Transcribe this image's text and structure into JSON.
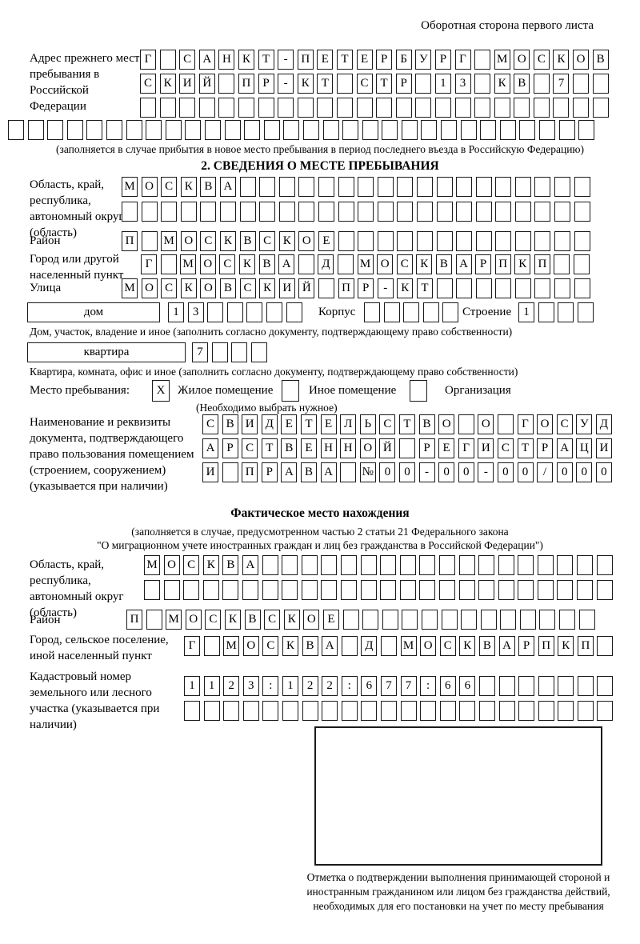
{
  "header": {
    "note": "Оборотная сторона первого листа"
  },
  "prev_address": {
    "label": "Адрес прежнего места пребывания в Российской Федерации",
    "rows": [
      [
        "Г",
        "",
        "С",
        "А",
        "Н",
        "К",
        "Т",
        "-",
        "П",
        "Е",
        "Т",
        "Е",
        "Р",
        "Б",
        "У",
        "Р",
        "Г",
        "",
        "М",
        "О",
        "С",
        "К",
        "О",
        "В"
      ],
      [
        "С",
        "К",
        "И",
        "Й",
        "",
        "П",
        "Р",
        "-",
        "К",
        "Т",
        "",
        "С",
        "Т",
        "Р",
        "",
        "1",
        "3",
        "",
        "К",
        "В",
        "",
        "7",
        "",
        ""
      ],
      [
        "",
        "",
        "",
        "",
        "",
        "",
        "",
        "",
        "",
        "",
        "",
        "",
        "",
        "",
        "",
        "",
        "",
        "",
        "",
        "",
        "",
        "",
        "",
        ""
      ],
      [
        "",
        "",
        "",
        "",
        "",
        "",
        "",
        "",
        "",
        "",
        "",
        "",
        "",
        "",
        "",
        "",
        "",
        "",
        "",
        "",
        "",
        "",
        "",
        "",
        "",
        "",
        "",
        "",
        "",
        ""
      ]
    ],
    "caption": "(заполняется в случае прибытия в новое место пребывания в период последнего въезда в Российскую Федерацию)"
  },
  "section2": {
    "title": "2. СВЕДЕНИЯ О МЕСТЕ ПРЕБЫВАНИЯ",
    "region": {
      "label": "Область, край, республика, автономный округ (область)",
      "rows": [
        [
          "М",
          "О",
          "С",
          "К",
          "В",
          "А",
          "",
          "",
          "",
          "",
          "",
          "",
          "",
          "",
          "",
          "",
          "",
          "",
          "",
          "",
          "",
          "",
          "",
          ""
        ],
        [
          "",
          "",
          "",
          "",
          "",
          "",
          "",
          "",
          "",
          "",
          "",
          "",
          "",
          "",
          "",
          "",
          "",
          "",
          "",
          "",
          "",
          "",
          "",
          ""
        ]
      ]
    },
    "district": {
      "label": "Район",
      "cells": [
        "П",
        "",
        "М",
        "О",
        "С",
        "К",
        "В",
        "С",
        "К",
        "О",
        "Е",
        "",
        "",
        "",
        "",
        "",
        "",
        "",
        "",
        "",
        "",
        "",
        "",
        ""
      ]
    },
    "city": {
      "label": "Город или другой населенный пункт",
      "cells": [
        "Г",
        "",
        "М",
        "О",
        "С",
        "К",
        "В",
        "А",
        "",
        "Д",
        "",
        "М",
        "О",
        "С",
        "К",
        "В",
        "А",
        "Р",
        "П",
        "К",
        "П",
        "",
        ""
      ]
    },
    "street": {
      "label": "Улица",
      "cells": [
        "М",
        "О",
        "С",
        "К",
        "О",
        "В",
        "С",
        "К",
        "И",
        "Й",
        "",
        "П",
        "Р",
        "-",
        "К",
        "Т",
        "",
        "",
        "",
        "",
        "",
        "",
        "",
        ""
      ]
    },
    "house": {
      "box_label": "дом",
      "number_cells": [
        "1",
        "3",
        "",
        "",
        "",
        "",
        ""
      ],
      "korpus_label": "Корпус",
      "korpus_cells": [
        "",
        "",
        "",
        "",
        ""
      ],
      "stroenie_label": "Строение",
      "stroenie_cells": [
        "1",
        "",
        "",
        ""
      ]
    },
    "house_caption": "Дом, участок, владение и иное (заполнить согласно документу, подтверждающему право собственности)",
    "apartment": {
      "box_label": "квартира",
      "cells": [
        "7",
        "",
        "",
        ""
      ]
    },
    "apartment_caption": "Квартира, комната, офис и иное (заполнить согласно документу, подтверждающему право собственности)",
    "stay_place": {
      "label": "Место пребывания:",
      "options": [
        {
          "label": "Жилое помещение",
          "mark": "X"
        },
        {
          "label": "Иное помещение",
          "mark": ""
        },
        {
          "label": "Организация",
          "mark": ""
        }
      ],
      "note": "(Необходимо выбрать нужное)"
    },
    "document": {
      "label": "Наименование и реквизиты документа, подтверждающего право пользования помещением (строением, сооружением) (указывается при наличии)",
      "rows": [
        [
          "С",
          "В",
          "И",
          "Д",
          "Е",
          "Т",
          "Е",
          "Л",
          "Ь",
          "С",
          "Т",
          "В",
          "О",
          "",
          "О",
          "",
          "Г",
          "О",
          "С",
          "У",
          "Д"
        ],
        [
          "А",
          "Р",
          "С",
          "Т",
          "В",
          "Е",
          "Н",
          "Н",
          "О",
          "Й",
          "",
          "Р",
          "Е",
          "Г",
          "И",
          "С",
          "Т",
          "Р",
          "А",
          "Ц",
          "И"
        ],
        [
          "И",
          "",
          "П",
          "Р",
          "А",
          "В",
          "А",
          "",
          "№",
          "0",
          "0",
          "-",
          "0",
          "0",
          "-",
          "0",
          "0",
          "/",
          "0",
          "0",
          "0"
        ]
      ]
    }
  },
  "actual_location": {
    "title": "Фактическое место нахождения",
    "caption_line1": "(заполняется в случае, предусмотренном частью 2 статьи 21 Федерального закона",
    "caption_line2": "\"О миграционном учете иностранных граждан и лиц без гражданства в Российской Федерации\")",
    "region": {
      "label": "Область, край, республика, автономный округ (область)",
      "rows": [
        [
          "М",
          "О",
          "С",
          "К",
          "В",
          "А",
          "",
          "",
          "",
          "",
          "",
          "",
          "",
          "",
          "",
          "",
          "",
          "",
          "",
          "",
          "",
          "",
          "",
          ""
        ],
        [
          "",
          "",
          "",
          "",
          "",
          "",
          "",
          "",
          "",
          "",
          "",
          "",
          "",
          "",
          "",
          "",
          "",
          "",
          "",
          "",
          "",
          "",
          "",
          ""
        ]
      ]
    },
    "district": {
      "label": "Район",
      "cells": [
        "П",
        "",
        "М",
        "О",
        "С",
        "К",
        "В",
        "С",
        "К",
        "О",
        "Е",
        "",
        "",
        "",
        "",
        "",
        "",
        "",
        "",
        "",
        "",
        "",
        "",
        ""
      ]
    },
    "city": {
      "label": "Город, сельское поселение, иной населенный пункт",
      "cells": [
        "Г",
        "",
        "М",
        "О",
        "С",
        "К",
        "В",
        "А",
        "",
        "Д",
        "",
        "М",
        "О",
        "С",
        "К",
        "В",
        "А",
        "Р",
        "П",
        "К",
        "П",
        ""
      ]
    },
    "cadastral": {
      "label": "Кадастровый номер земельного или лесного участка (указывается при наличии)",
      "rows": [
        [
          "1",
          "1",
          "2",
          "3",
          ":",
          "1",
          "2",
          "2",
          ":",
          "6",
          "7",
          "7",
          ":",
          "6",
          "6",
          "",
          "",
          "",
          "",
          "",
          "",
          ""
        ],
        [
          "",
          "",
          "",
          "",
          "",
          "",
          "",
          "",
          "",
          "",
          "",
          "",
          "",
          "",
          "",
          "",
          "",
          "",
          "",
          "",
          "",
          ""
        ]
      ]
    },
    "stamp_caption": "Отметка о подтверждении выполнения принимающей стороной и иностранным гражданином или лицом без гражданства действий, необходимых для его постановки на учет по месту пребывания"
  }
}
